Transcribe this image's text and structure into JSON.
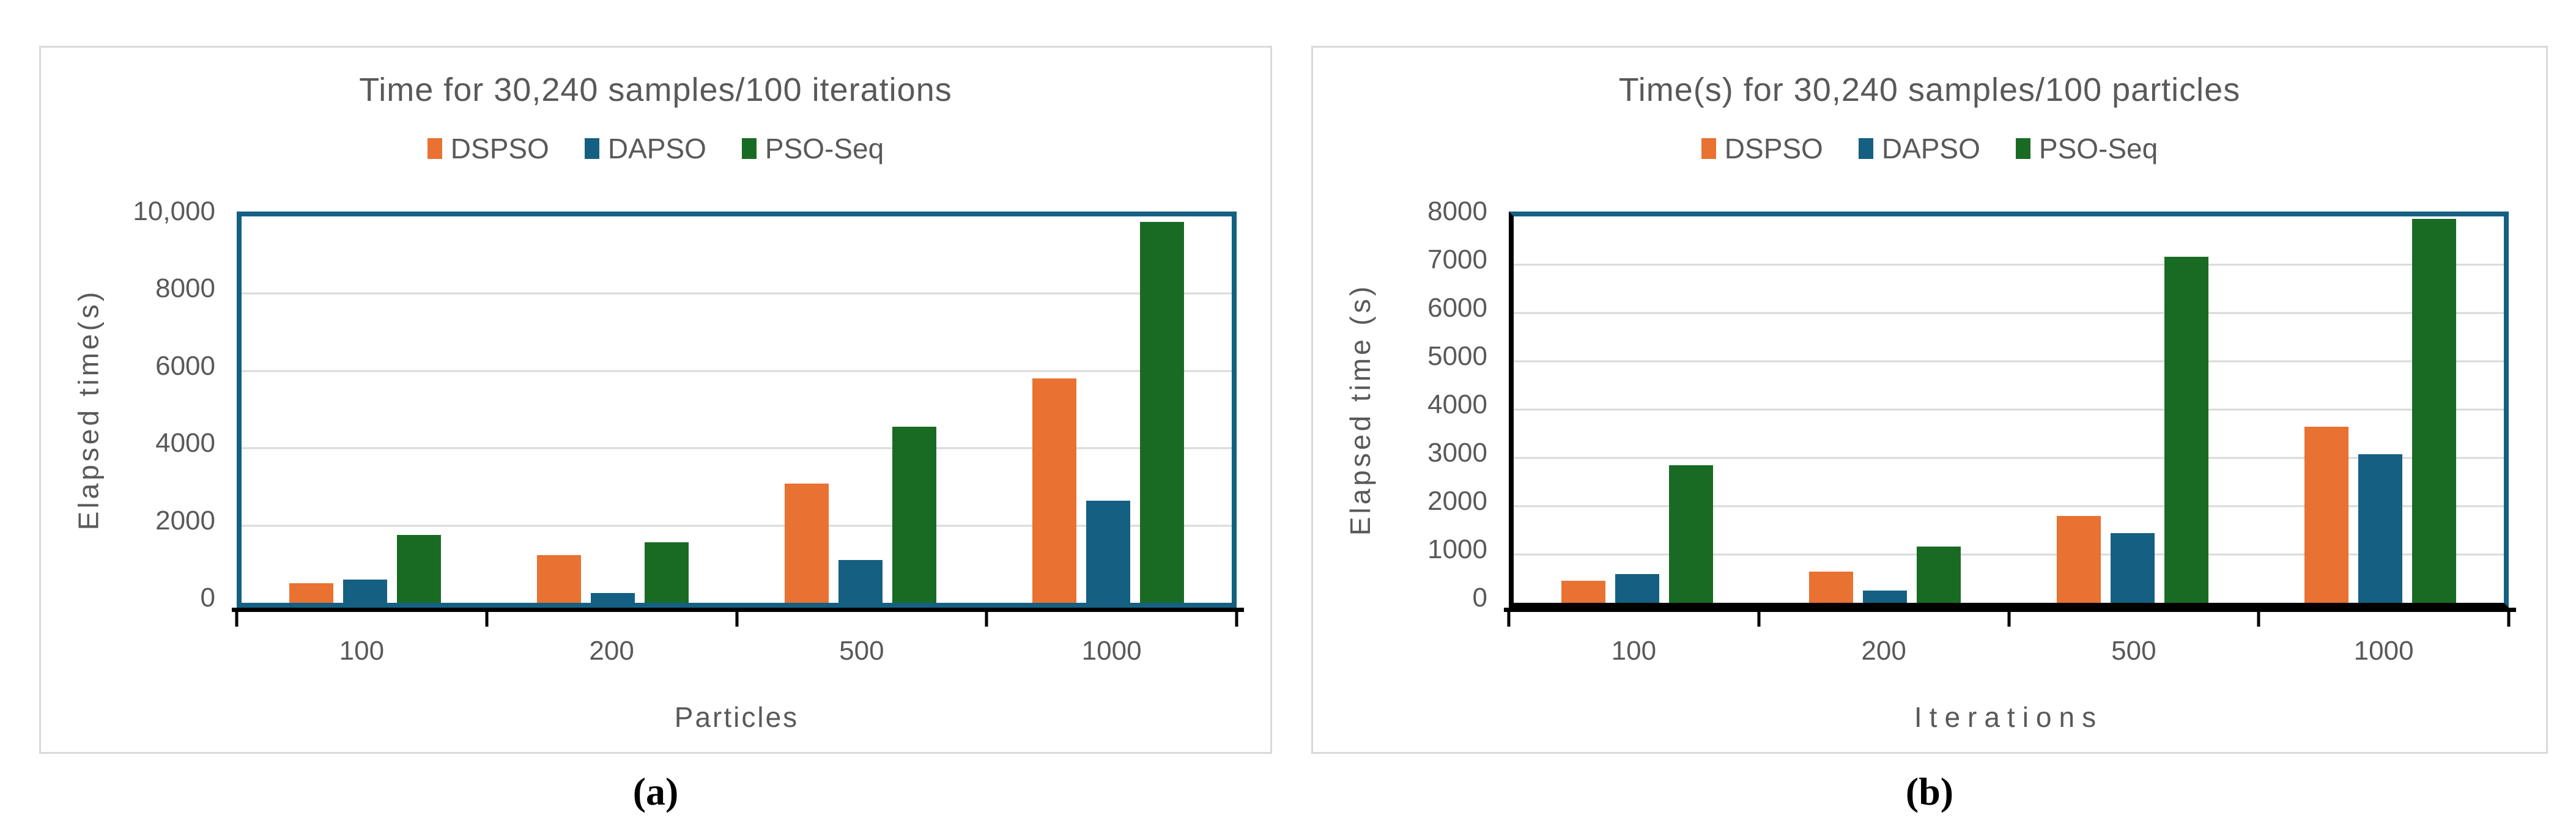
{
  "colors": {
    "dspso_orange": "#E97132",
    "dapso_blue": "#156082",
    "psoseq_green": "#196B24",
    "text_gray": "#595959",
    "gridline_gray": "#D9D9D9",
    "axis_black": "#000000",
    "panel_border_gray": "#D9D9D9",
    "plot_frame_teal": "#156082"
  },
  "captions": {
    "a": "(a)",
    "b": "(b)"
  },
  "chart_data": [
    {
      "type": "bar",
      "title": "Time for 30,240 samples/100 iterations",
      "xlabel": "Particles",
      "ylabel": "Elapsed time(s)",
      "categories": [
        "100",
        "200",
        "500",
        "1000"
      ],
      "series": [
        {
          "name": "DSPSO",
          "color": "#E97132",
          "values": [
            500,
            1230,
            3080,
            5800
          ]
        },
        {
          "name": "DAPSO",
          "color": "#156082",
          "values": [
            600,
            260,
            1100,
            2650
          ]
        },
        {
          "name": "PSO-Seq",
          "color": "#196B24",
          "values": [
            1750,
            1560,
            4560,
            9850
          ]
        }
      ],
      "ylim": [
        0,
        10000
      ],
      "yticks": [
        {
          "value": 0,
          "label": "0"
        },
        {
          "value": 2000,
          "label": "2000"
        },
        {
          "value": 4000,
          "label": "4000"
        },
        {
          "value": 6000,
          "label": "6000"
        },
        {
          "value": 8000,
          "label": "8000"
        },
        {
          "value": 10000,
          "label": "10,000"
        }
      ],
      "grid": true,
      "legend_position": "top"
    },
    {
      "type": "bar",
      "title": "Time(s) for 30,240 samples/100 particles",
      "xlabel": "Iterations",
      "ylabel": "Elapsed time (s)",
      "categories": [
        "100",
        "200",
        "500",
        "1000"
      ],
      "series": [
        {
          "name": "DSPSO",
          "color": "#E97132",
          "values": [
            450,
            650,
            1800,
            3650
          ]
        },
        {
          "name": "DAPSO",
          "color": "#156082",
          "values": [
            590,
            250,
            1440,
            3080
          ]
        },
        {
          "name": "PSO-Seq",
          "color": "#196B24",
          "values": [
            2850,
            1160,
            7160,
            7950
          ]
        }
      ],
      "ylim": [
        0,
        8000
      ],
      "yticks": [
        {
          "value": 0,
          "label": "0"
        },
        {
          "value": 1000,
          "label": "1000"
        },
        {
          "value": 2000,
          "label": "2000"
        },
        {
          "value": 3000,
          "label": "3000"
        },
        {
          "value": 4000,
          "label": "4000"
        },
        {
          "value": 5000,
          "label": "5000"
        },
        {
          "value": 6000,
          "label": "6000"
        },
        {
          "value": 7000,
          "label": "7000"
        },
        {
          "value": 8000,
          "label": "8000"
        }
      ],
      "grid": true,
      "legend_position": "top"
    }
  ]
}
